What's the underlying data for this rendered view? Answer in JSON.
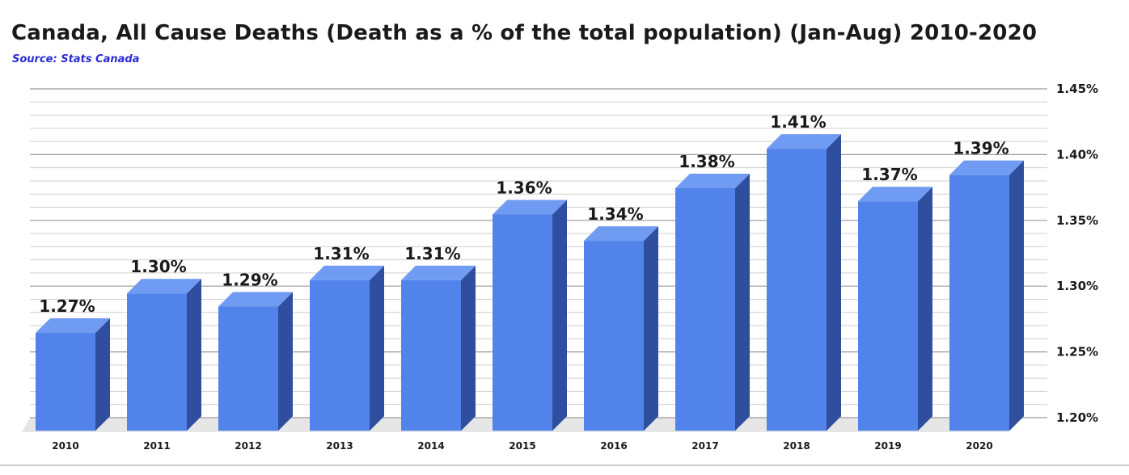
{
  "chart_data": {
    "type": "bar",
    "title": "Canada, All Cause Deaths (Death as a % of the total population) (Jan-Aug) 2010-2020",
    "subtitle": "Source: Stats Canada",
    "categories": [
      "2010",
      "2011",
      "2012",
      "2013",
      "2014",
      "2015",
      "2016",
      "2017",
      "2018",
      "2019",
      "2020"
    ],
    "values": [
      1.27,
      1.3,
      1.29,
      1.31,
      1.31,
      1.36,
      1.34,
      1.38,
      1.41,
      1.37,
      1.39
    ],
    "data_labels": [
      "1.27%",
      "1.30%",
      "1.29%",
      "1.31%",
      "1.31%",
      "1.36%",
      "1.34%",
      "1.38%",
      "1.41%",
      "1.37%",
      "1.39%"
    ],
    "ylim": [
      1.2,
      1.45
    ],
    "yticks": [
      1.2,
      1.25,
      1.3,
      1.35,
      1.4,
      1.45
    ],
    "ytick_labels": [
      "1.20%",
      "1.25%",
      "1.30%",
      "1.35%",
      "1.40%",
      "1.45%"
    ],
    "y_axis_side": "right",
    "xlabel": "",
    "ylabel": "",
    "grid": true,
    "bar_style": "3d",
    "colors": {
      "bar_front": "#5283ea",
      "bar_top": "#6f9bf2",
      "bar_side": "#2f4f9e",
      "grid": "#cfcfcf",
      "grid_major": "#9a9a9a",
      "floor": "#e6e6e6"
    }
  }
}
